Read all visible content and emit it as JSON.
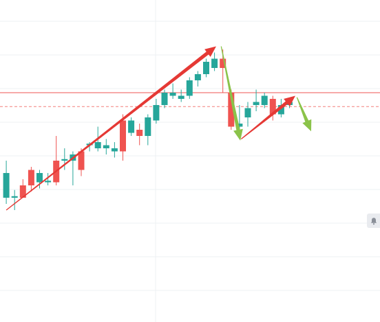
{
  "chart_data": {
    "type": "candlestick",
    "title": "",
    "xlabel": "",
    "ylabel": "",
    "grid": true,
    "colors": {
      "up": "#26a69a",
      "down": "#ef5350",
      "arrow_up": "#e53935",
      "arrow_down": "#8bc34a",
      "price_line": "#ef5350",
      "grid": "#eef0f3"
    },
    "ylim": [
      0,
      100
    ],
    "reference_lines": [
      {
        "style": "solid",
        "value": 62
      },
      {
        "style": "dashed",
        "value": 57.5
      }
    ],
    "candles": [
      {
        "i": 1,
        "open": 28,
        "close": 36,
        "high": 40,
        "low": 26
      },
      {
        "i": 2,
        "open": 28,
        "close": 28.5,
        "high": 30.5,
        "low": 24
      },
      {
        "i": 3,
        "open": 32,
        "close": 28,
        "high": 34,
        "low": 28
      },
      {
        "i": 4,
        "open": 37,
        "close": 32,
        "high": 38,
        "low": 30
      },
      {
        "i": 5,
        "open": 33,
        "close": 36,
        "high": 37,
        "low": 31
      },
      {
        "i": 6,
        "open": 33,
        "close": 33.5,
        "high": 36,
        "low": 32
      },
      {
        "i": 7,
        "open": 40,
        "close": 33,
        "high": 48,
        "low": 32
      },
      {
        "i": 8,
        "open": 40,
        "close": 40.5,
        "high": 44,
        "low": 37
      },
      {
        "i": 9,
        "open": 40,
        "close": 42,
        "high": 43,
        "low": 32
      },
      {
        "i": 10,
        "open": 43,
        "close": 37,
        "high": 44,
        "low": 35
      },
      {
        "i": 11,
        "open": 45,
        "close": 45.5,
        "high": 46,
        "low": 43
      },
      {
        "i": 12,
        "open": 44,
        "close": 46,
        "high": 51,
        "low": 43
      },
      {
        "i": 13,
        "open": 44,
        "close": 45,
        "high": 47,
        "low": 42
      },
      {
        "i": 14,
        "open": 43,
        "close": 44,
        "high": 46,
        "low": 41
      },
      {
        "i": 15,
        "open": 53,
        "close": 43,
        "high": 55,
        "low": 40
      },
      {
        "i": 16,
        "open": 49,
        "close": 53,
        "high": 54,
        "low": 48
      },
      {
        "i": 17,
        "open": 50,
        "close": 48,
        "high": 52,
        "low": 45
      },
      {
        "i": 18,
        "open": 48,
        "close": 54,
        "high": 55,
        "low": 45
      },
      {
        "i": 19,
        "open": 53,
        "close": 58,
        "high": 60,
        "low": 52
      },
      {
        "i": 20,
        "open": 58,
        "close": 62,
        "high": 63,
        "low": 57
      },
      {
        "i": 21,
        "open": 61,
        "close": 62,
        "high": 65,
        "low": 60
      },
      {
        "i": 22,
        "open": 60,
        "close": 61,
        "high": 63,
        "low": 59
      },
      {
        "i": 23,
        "open": 61,
        "close": 66,
        "high": 67,
        "low": 60
      },
      {
        "i": 24,
        "open": 66,
        "close": 68,
        "high": 69,
        "low": 64
      },
      {
        "i": 25,
        "open": 68,
        "close": 72,
        "high": 73,
        "low": 67
      },
      {
        "i": 26,
        "open": 70,
        "close": 73,
        "high": 75,
        "low": 69
      },
      {
        "i": 27,
        "open": 73,
        "close": 70,
        "high": 76,
        "low": 62
      },
      {
        "i": 28,
        "open": 62,
        "close": 51,
        "high": 63,
        "low": 50
      },
      {
        "i": 29,
        "open": 51,
        "close": 52,
        "high": 58,
        "low": 47
      },
      {
        "i": 30,
        "open": 54,
        "close": 57,
        "high": 59,
        "low": 51
      },
      {
        "i": 31,
        "open": 58,
        "close": 59,
        "high": 63,
        "low": 56
      },
      {
        "i": 32,
        "open": 58,
        "close": 61,
        "high": 62,
        "low": 57
      },
      {
        "i": 33,
        "open": 60,
        "close": 55,
        "high": 61,
        "low": 53
      },
      {
        "i": 34,
        "open": 55,
        "close": 58,
        "high": 60,
        "low": 54
      },
      {
        "i": 35,
        "open": 58,
        "close": 59,
        "high": 60,
        "low": 57
      }
    ],
    "annotations": [
      {
        "type": "arrow",
        "color": "arrow_up",
        "from": {
          "i": 1,
          "y": 24
        },
        "to": {
          "i": 26.2,
          "y": 77
        }
      },
      {
        "type": "arrow",
        "color": "arrow_down",
        "from": {
          "i": 26.8,
          "y": 77
        },
        "to": {
          "i": 29.1,
          "y": 46.5
        }
      },
      {
        "type": "arrow",
        "color": "arrow_up",
        "from": {
          "i": 29.2,
          "y": 47
        },
        "to": {
          "i": 35.7,
          "y": 61
        }
      },
      {
        "type": "arrow",
        "color": "arrow_down",
        "from": {
          "i": 35.9,
          "y": 60.5
        },
        "to": {
          "i": 37.6,
          "y": 49.5
        }
      }
    ],
    "alert_icon": "bell-icon"
  }
}
